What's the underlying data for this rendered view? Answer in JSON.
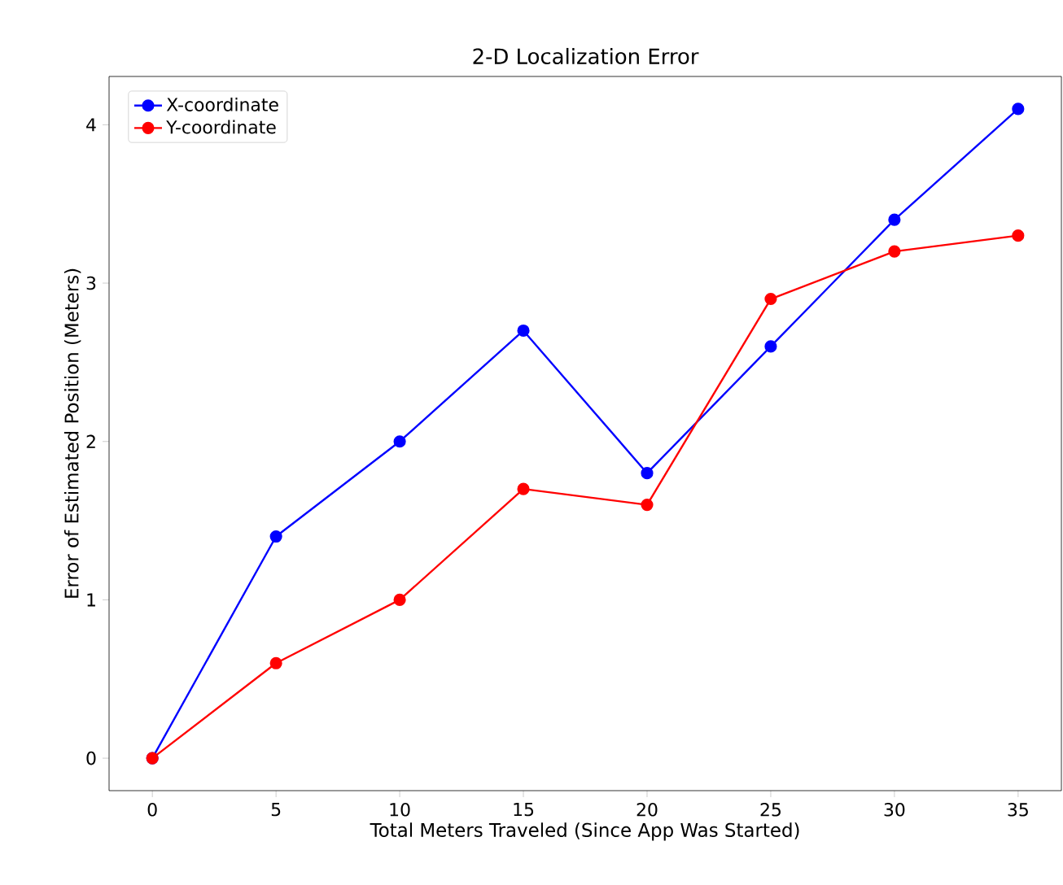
{
  "chart_data": {
    "type": "line",
    "title": "2-D Localization Error",
    "xlabel": "Total Meters Traveled (Since App Was Started)",
    "ylabel": "Error of Estimated Position (Meters)",
    "x": [
      0,
      5,
      10,
      15,
      20,
      25,
      30,
      35
    ],
    "series": [
      {
        "name": "X-coordinate",
        "color": "#0000ff",
        "values": [
          0,
          1.4,
          2.0,
          2.7,
          1.8,
          2.6,
          3.4,
          4.1
        ]
      },
      {
        "name": "Y-coordinate",
        "color": "#ff0000",
        "values": [
          0,
          0.6,
          1.0,
          1.7,
          1.6,
          2.9,
          3.2,
          3.3
        ]
      }
    ],
    "xlim": [
      -1.75,
      36.75
    ],
    "ylim": [
      -0.205,
      4.305
    ],
    "xticks": [
      0,
      5,
      10,
      15,
      20,
      25,
      30,
      35
    ],
    "yticks": [
      0,
      1,
      2,
      3,
      4
    ],
    "legend": "top left",
    "marker": "circle",
    "line_style": "solid",
    "grid": false
  }
}
